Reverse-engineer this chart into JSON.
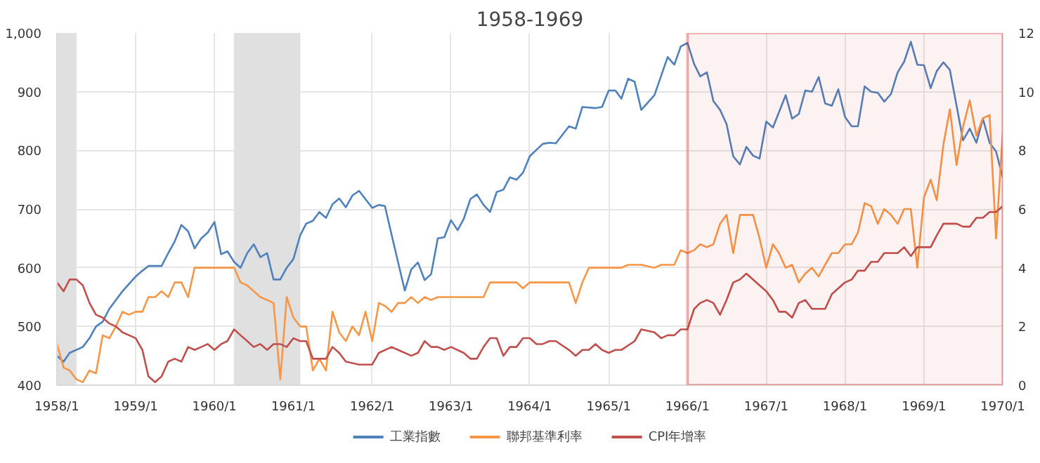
{
  "chart_data": {
    "type": "line",
    "title": "1958-1969",
    "xlim": [
      "1958-01",
      "1970-01"
    ],
    "xticks": [
      {
        "value": "1958-01",
        "label": "1958/1"
      },
      {
        "value": "1959-01",
        "label": "1959/1"
      },
      {
        "value": "1960-01",
        "label": "1960/1"
      },
      {
        "value": "1961-01",
        "label": "1961/1"
      },
      {
        "value": "1962-01",
        "label": "1962/1"
      },
      {
        "value": "1963-01",
        "label": "1963/1"
      },
      {
        "value": "1964-01",
        "label": "1964/1"
      },
      {
        "value": "1965-01",
        "label": "1965/1"
      },
      {
        "value": "1966-01",
        "label": "1966/1"
      },
      {
        "value": "1967-01",
        "label": "1967/1"
      },
      {
        "value": "1968-01",
        "label": "1968/1"
      },
      {
        "value": "1969-01",
        "label": "1969/1"
      },
      {
        "value": "1970-01",
        "label": "1970/1"
      }
    ],
    "ylim": [
      400,
      1000
    ],
    "yticks": [
      400,
      500,
      600,
      700,
      800,
      900,
      {
        "value": 1000,
        "label": "1,000"
      }
    ],
    "y2lim": [
      0,
      12
    ],
    "y2ticks": [
      0,
      2,
      4,
      6,
      8,
      10,
      12
    ],
    "grid": true,
    "legend": "bottom",
    "bands": [
      {
        "axis": "x",
        "from": "1958-01",
        "to": "1958-04",
        "color": "#e0e0e0"
      },
      {
        "axis": "x",
        "from": "1960-04",
        "to": "1961-02",
        "color": "#e0e0e0"
      },
      {
        "axis": "x",
        "from": "1966-01",
        "to": "1970-01",
        "color": "#e02020"
      }
    ],
    "series": [
      {
        "name": "工業指數",
        "color": "#4f81bd",
        "x": [
          "1958-01",
          "1958-02",
          "1958-03",
          "1958-05",
          "1958-06",
          "1958-07",
          "1958-08",
          "1958-09",
          "1958-10",
          "1958-11",
          "1959-01",
          "1959-02",
          "1959-03",
          "1959-05",
          "1959-06",
          "1959-07",
          "1959-08",
          "1959-09",
          "1959-10",
          "1959-11",
          "1959-12",
          "1960-01",
          "1960-02",
          "1960-03",
          "1960-04",
          "1960-05",
          "1960-06",
          "1960-07",
          "1960-08",
          "1960-09",
          "1960-10",
          "1960-11",
          "1960-12",
          "1961-01",
          "1961-02",
          "1961-03",
          "1961-04",
          "1961-05",
          "1961-06",
          "1961-07",
          "1961-08",
          "1961-09",
          "1961-10",
          "1961-11",
          "1962-01",
          "1962-02",
          "1962-03",
          "1962-04",
          "1962-06",
          "1962-07",
          "1962-08",
          "1962-09",
          "1962-10",
          "1962-11",
          "1962-12",
          "1963-01",
          "1963-02",
          "1963-03",
          "1963-04",
          "1963-05",
          "1963-06",
          "1963-07",
          "1963-08",
          "1963-09",
          "1963-10",
          "1963-11",
          "1963-12",
          "1964-01",
          "1964-03",
          "1964-04",
          "1964-05",
          "1964-07",
          "1964-08",
          "1964-09",
          "1964-11",
          "1964-12",
          "1965-01",
          "1965-02",
          "1965-03",
          "1965-04",
          "1965-05",
          "1965-06",
          "1965-08",
          "1965-10",
          "1965-11",
          "1965-12",
          "1966-01",
          "1966-02",
          "1966-03",
          "1966-04",
          "1966-05",
          "1966-06",
          "1966-07",
          "1966-08",
          "1966-09",
          "1966-10",
          "1966-11",
          "1966-12",
          "1967-01",
          "1967-02",
          "1967-03",
          "1967-04",
          "1967-05",
          "1967-06",
          "1967-07",
          "1967-08",
          "1967-09",
          "1967-10",
          "1967-11",
          "1967-12",
          "1968-01",
          "1968-02",
          "1968-03",
          "1968-04",
          "1968-05",
          "1968-06",
          "1968-07",
          "1968-08",
          "1968-09",
          "1968-10",
          "1968-11",
          "1968-12",
          "1969-01",
          "1969-02",
          "1969-03",
          "1969-04",
          "1969-05",
          "1969-06",
          "1969-07",
          "1969-08",
          "1969-09",
          "1969-10",
          "1969-11",
          "1969-12",
          "1970-01"
        ],
        "values": [
          450,
          440,
          455,
          465,
          480,
          500,
          508,
          530,
          545,
          560,
          585,
          595,
          603,
          603,
          625,
          645,
          673,
          662,
          633,
          650,
          660,
          678,
          623,
          628,
          610,
          600,
          625,
          640,
          618,
          625,
          580,
          580,
          600,
          615,
          655,
          675,
          680,
          695,
          685,
          708,
          718,
          703,
          723,
          731,
          702,
          707,
          705,
          656,
          561,
          597,
          609,
          579,
          589,
          650,
          652,
          681,
          664,
          683,
          717,
          725,
          707,
          695,
          729,
          733,
          754,
          750,
          762,
          790,
          811,
          813,
          812,
          841,
          837,
          874,
          872,
          874,
          902,
          902,
          888,
          922,
          917,
          869,
          894,
          959,
          946,
          977,
          983,
          947,
          926,
          933,
          884,
          869,
          845,
          790,
          776,
          806,
          791,
          786,
          849,
          839,
          865,
          894,
          854,
          862,
          902,
          900,
          925,
          880,
          876,
          904,
          857,
          841,
          841,
          909,
          900,
          898,
          883,
          896,
          933,
          951,
          985,
          946,
          945,
          906,
          935,
          950,
          937,
          876,
          817,
          837,
          813,
          854,
          813,
          798,
          754
        ]
      },
      {
        "name": "聯邦基準利率",
        "color": "#f79646",
        "axis": "y2",
        "x": [
          "1958-01",
          "1958-02",
          "1958-03",
          "1958-04",
          "1958-05",
          "1958-06",
          "1958-07",
          "1958-08",
          "1958-09",
          "1958-10",
          "1958-11",
          "1958-12",
          "1959-01",
          "1959-02",
          "1959-03",
          "1959-04",
          "1959-05",
          "1959-06",
          "1959-07",
          "1959-08",
          "1959-09",
          "1959-10",
          "1960-04",
          "1960-05",
          "1960-06",
          "1960-07",
          "1960-08",
          "1960-09",
          "1960-10",
          "1960-11",
          "1960-12",
          "1961-01",
          "1961-02",
          "1961-03",
          "1961-04",
          "1961-05",
          "1961-06",
          "1961-07",
          "1961-08",
          "1961-09",
          "1961-10",
          "1961-11",
          "1961-12",
          "1962-01",
          "1962-02",
          "1962-03",
          "1962-04",
          "1962-05",
          "1962-06",
          "1962-07",
          "1962-08",
          "1962-09",
          "1962-10",
          "1962-11",
          "1963-06",
          "1963-07",
          "1963-11",
          "1963-12",
          "1964-01",
          "1964-07",
          "1964-08",
          "1964-09",
          "1964-10",
          "1965-03",
          "1965-04",
          "1965-06",
          "1965-08",
          "1965-09",
          "1965-11",
          "1965-12",
          "1966-01",
          "1966-02",
          "1966-03",
          "1966-04",
          "1966-05",
          "1966-06",
          "1966-07",
          "1966-08",
          "1966-09",
          "1966-11",
          "1966-12",
          "1967-01",
          "1967-02",
          "1967-03",
          "1967-04",
          "1967-05",
          "1967-06",
          "1967-07",
          "1967-08",
          "1967-09",
          "1967-10",
          "1967-11",
          "1967-12",
          "1968-01",
          "1968-02",
          "1968-03",
          "1968-04",
          "1968-05",
          "1968-06",
          "1968-07",
          "1968-08",
          "1968-09",
          "1968-10",
          "1968-11",
          "1968-12",
          "1969-01",
          "1969-02",
          "1969-03",
          "1969-04",
          "1969-05",
          "1969-06",
          "1969-07",
          "1969-08",
          "1969-09",
          "1969-10",
          "1969-11",
          "1969-12",
          "1970-01"
        ],
        "values": [
          1.4,
          0.6,
          0.5,
          0.2,
          0.1,
          0.5,
          0.4,
          1.7,
          1.6,
          2.0,
          2.5,
          2.4,
          2.5,
          2.5,
          3.0,
          3.0,
          3.2,
          3.0,
          3.5,
          3.5,
          3.0,
          4.0,
          4.0,
          3.5,
          3.4,
          3.2,
          3.0,
          2.9,
          2.8,
          0.2,
          3.0,
          2.3,
          2.0,
          2.0,
          0.5,
          0.9,
          0.5,
          2.5,
          1.8,
          1.5,
          2.0,
          1.7,
          2.5,
          1.5,
          2.8,
          2.7,
          2.5,
          2.8,
          2.8,
          3.0,
          2.8,
          3.0,
          2.9,
          3.0,
          3.0,
          3.5,
          3.5,
          3.3,
          3.5,
          3.5,
          2.8,
          3.5,
          4.0,
          4.0,
          4.1,
          4.1,
          4.0,
          4.1,
          4.1,
          4.6,
          4.5,
          4.6,
          4.8,
          4.7,
          4.8,
          5.5,
          5.8,
          4.5,
          5.8,
          5.8,
          5.0,
          4.0,
          4.8,
          4.5,
          4.0,
          4.1,
          3.5,
          3.8,
          4.0,
          3.7,
          4.1,
          4.5,
          4.5,
          4.8,
          4.8,
          5.2,
          6.2,
          6.1,
          5.5,
          6.0,
          5.8,
          5.5,
          6.0,
          6.0,
          4.0,
          6.4,
          7.0,
          6.3,
          8.2,
          9.4,
          7.5,
          8.8,
          9.7,
          8.5,
          9.1,
          9.2,
          5.0,
          8.6
        ]
      },
      {
        "name": "CPI年增率",
        "color": "#c0504d",
        "axis": "y2",
        "x": [
          "1958-01",
          "1958-02",
          "1958-03",
          "1958-04",
          "1958-05",
          "1958-06",
          "1958-07",
          "1958-08",
          "1958-09",
          "1958-10",
          "1958-11",
          "1959-01",
          "1959-02",
          "1959-03",
          "1959-04",
          "1959-05",
          "1959-06",
          "1959-07",
          "1959-08",
          "1959-09",
          "1959-10",
          "1959-11",
          "1959-12",
          "1960-01",
          "1960-02",
          "1960-03",
          "1960-04",
          "1960-05",
          "1960-06",
          "1960-07",
          "1960-08",
          "1960-09",
          "1960-10",
          "1960-11",
          "1960-12",
          "1961-01",
          "1961-02",
          "1961-03",
          "1961-04",
          "1961-05",
          "1961-06",
          "1961-07",
          "1961-08",
          "1961-09",
          "1961-11",
          "1962-01",
          "1962-02",
          "1962-04",
          "1962-05",
          "1962-07",
          "1962-08",
          "1962-09",
          "1962-10",
          "1962-11",
          "1962-12",
          "1963-01",
          "1963-03",
          "1963-04",
          "1963-05",
          "1963-06",
          "1963-07",
          "1963-08",
          "1963-09",
          "1963-10",
          "1963-11",
          "1963-12",
          "1964-01",
          "1964-02",
          "1964-03",
          "1964-04",
          "1964-05",
          "1964-07",
          "1964-08",
          "1964-09",
          "1964-10",
          "1964-11",
          "1964-12",
          "1965-01",
          "1965-02",
          "1965-03",
          "1965-05",
          "1965-06",
          "1965-08",
          "1965-09",
          "1965-10",
          "1965-11",
          "1965-12",
          "1966-01",
          "1966-02",
          "1966-03",
          "1966-04",
          "1966-05",
          "1966-06",
          "1966-07",
          "1966-08",
          "1966-09",
          "1966-10",
          "1966-11",
          "1966-12",
          "1967-01",
          "1967-02",
          "1967-03",
          "1967-04",
          "1967-05",
          "1967-06",
          "1967-07",
          "1967-08",
          "1967-10",
          "1967-11",
          "1967-12",
          "1968-01",
          "1968-02",
          "1968-03",
          "1968-04",
          "1968-05",
          "1968-06",
          "1968-07",
          "1968-09",
          "1968-10",
          "1968-11",
          "1968-12",
          "1969-01",
          "1969-02",
          "1969-03",
          "1969-04",
          "1969-06",
          "1969-07",
          "1969-08",
          "1969-09",
          "1969-10",
          "1969-11",
          "1969-12",
          "1970-01"
        ],
        "values": [
          3.5,
          3.2,
          3.6,
          3.6,
          3.4,
          2.8,
          2.4,
          2.3,
          2.1,
          2.0,
          1.8,
          1.6,
          1.2,
          0.3,
          0.1,
          0.3,
          0.8,
          0.9,
          0.8,
          1.3,
          1.2,
          1.3,
          1.4,
          1.2,
          1.4,
          1.5,
          1.9,
          1.7,
          1.5,
          1.3,
          1.4,
          1.2,
          1.4,
          1.4,
          1.3,
          1.6,
          1.5,
          1.5,
          0.9,
          0.9,
          0.9,
          1.3,
          1.1,
          0.8,
          0.7,
          0.7,
          1.1,
          1.3,
          1.2,
          1.0,
          1.1,
          1.5,
          1.3,
          1.3,
          1.2,
          1.3,
          1.1,
          0.9,
          0.9,
          1.3,
          1.6,
          1.6,
          1.0,
          1.3,
          1.3,
          1.6,
          1.6,
          1.4,
          1.4,
          1.5,
          1.5,
          1.2,
          1.0,
          1.2,
          1.2,
          1.4,
          1.2,
          1.1,
          1.2,
          1.2,
          1.5,
          1.9,
          1.8,
          1.6,
          1.7,
          1.7,
          1.9,
          1.9,
          2.6,
          2.8,
          2.9,
          2.8,
          2.4,
          2.9,
          3.5,
          3.6,
          3.8,
          3.6,
          3.4,
          3.2,
          2.9,
          2.5,
          2.5,
          2.3,
          2.8,
          2.9,
          2.6,
          2.6,
          3.1,
          3.3,
          3.5,
          3.6,
          3.9,
          3.9,
          4.2,
          4.2,
          4.5,
          4.5,
          4.7,
          4.4,
          4.7,
          4.7,
          4.7,
          5.1,
          5.5,
          5.5,
          5.4,
          5.4,
          5.7,
          5.7,
          5.9,
          5.9,
          6.1
        ]
      }
    ]
  }
}
